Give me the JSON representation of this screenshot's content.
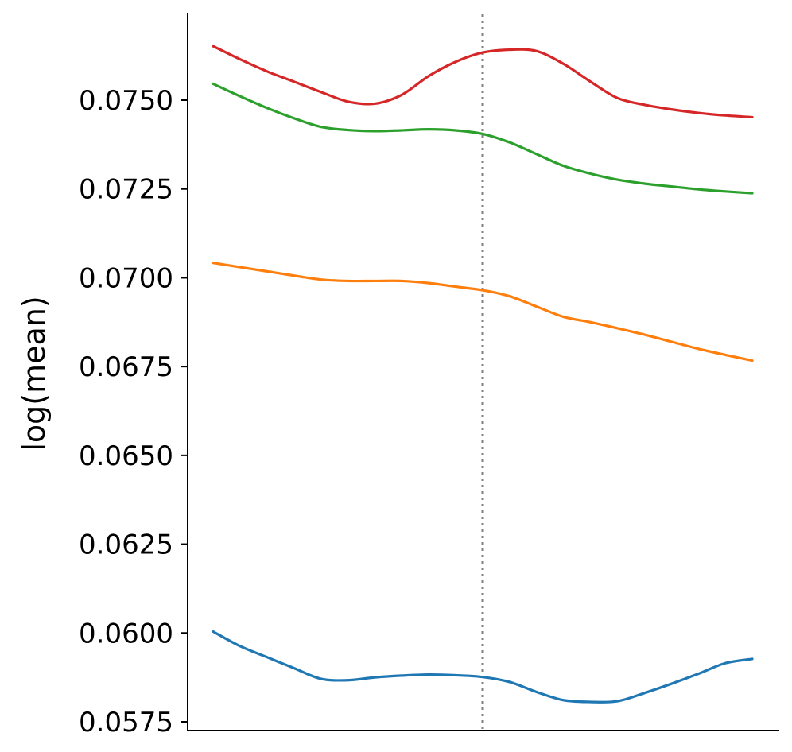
{
  "chart_data": {
    "type": "line",
    "title": "",
    "xlabel": "",
    "ylabel": "log(mean)",
    "xlim": [
      0,
      1
    ],
    "ylim": [
      0.0571,
      0.0776
    ],
    "yticks": [
      0.0575,
      0.06,
      0.0625,
      0.065,
      0.0675,
      0.07,
      0.0725,
      0.075
    ],
    "ytick_labels": [
      "0.0575",
      "0.0600",
      "0.0625",
      "0.0650",
      "0.0675",
      "0.0700",
      "0.0725",
      "0.0750"
    ],
    "x_tick_labels": [],
    "grid": false,
    "legend": "none",
    "vline": {
      "x": 0.5,
      "color": "#808080",
      "style": "dotted"
    },
    "series": [
      {
        "color": "#d62728",
        "x": [
          0,
          0.05,
          0.1,
          0.15,
          0.2,
          0.25,
          0.3,
          0.35,
          0.4,
          0.45,
          0.5,
          0.55,
          0.6,
          0.65,
          0.7,
          0.75,
          0.8,
          0.85,
          0.9,
          0.95,
          1.0
        ],
        "y": [
          0.07652,
          0.07615,
          0.07581,
          0.07552,
          0.07523,
          0.07496,
          0.0749,
          0.07515,
          0.07568,
          0.07608,
          0.07634,
          0.07642,
          0.07638,
          0.07602,
          0.07552,
          0.07506,
          0.07487,
          0.07474,
          0.07464,
          0.07457,
          0.07452
        ]
      },
      {
        "color": "#2ca02c",
        "x": [
          0,
          0.05,
          0.1,
          0.15,
          0.2,
          0.25,
          0.3,
          0.35,
          0.4,
          0.45,
          0.5,
          0.55,
          0.6,
          0.65,
          0.7,
          0.75,
          0.8,
          0.85,
          0.9,
          0.95,
          1.0
        ],
        "y": [
          0.07546,
          0.07511,
          0.07478,
          0.07449,
          0.07425,
          0.07416,
          0.07413,
          0.07415,
          0.07418,
          0.07415,
          0.07405,
          0.07381,
          0.07348,
          0.07315,
          0.07293,
          0.07276,
          0.07265,
          0.07257,
          0.07249,
          0.07243,
          0.07238
        ]
      },
      {
        "color": "#ff7f0e",
        "x": [
          0,
          0.05,
          0.1,
          0.15,
          0.2,
          0.25,
          0.3,
          0.35,
          0.4,
          0.45,
          0.5,
          0.55,
          0.6,
          0.65,
          0.7,
          0.75,
          0.8,
          0.85,
          0.9,
          0.95,
          1.0
        ],
        "y": [
          0.07042,
          0.0703,
          0.07018,
          0.07006,
          0.06995,
          0.06991,
          0.06991,
          0.06991,
          0.06985,
          0.06975,
          0.06965,
          0.06948,
          0.06919,
          0.0689,
          0.06875,
          0.06858,
          0.0684,
          0.0682,
          0.068,
          0.06783,
          0.06767
        ]
      },
      {
        "color": "#1f77b4",
        "x": [
          0,
          0.05,
          0.1,
          0.15,
          0.2,
          0.25,
          0.3,
          0.35,
          0.4,
          0.45,
          0.5,
          0.55,
          0.6,
          0.65,
          0.7,
          0.75,
          0.8,
          0.85,
          0.9,
          0.95,
          1.0
        ],
        "y": [
          0.06004,
          0.05963,
          0.05932,
          0.05901,
          0.05871,
          0.05867,
          0.05875,
          0.0588,
          0.05883,
          0.05881,
          0.05876,
          0.05862,
          0.05834,
          0.05811,
          0.05806,
          0.05808,
          0.05831,
          0.05857,
          0.05885,
          0.05915,
          0.05927
        ]
      }
    ]
  }
}
